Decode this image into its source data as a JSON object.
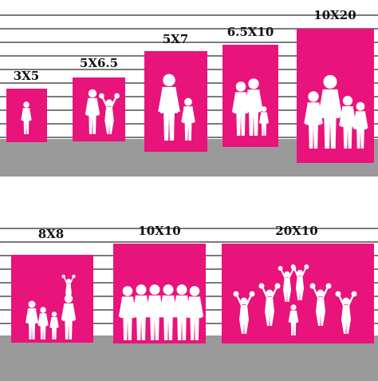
{
  "colors": {
    "backdrop": "#e8137b",
    "floor": "#9a9a9a",
    "line": "#2a2a2a",
    "silhouette": "#ffffff"
  },
  "top_row": {
    "sizes": [
      {
        "label": "3X5",
        "icon": "toddler-silhouette"
      },
      {
        "label": "5X6.5",
        "icon": "adult-and-child-silhouette"
      },
      {
        "label": "5X7",
        "icon": "man-and-boy-silhouette"
      },
      {
        "label": "6.5X10",
        "icon": "family-of-three-silhouette"
      },
      {
        "label": "10X20",
        "icon": "family-of-four-silhouette"
      }
    ]
  },
  "bottom_row": {
    "sizes": [
      {
        "label": "8X8",
        "icon": "small-family-silhouette"
      },
      {
        "label": "10X10",
        "icon": "group-of-six-silhouette"
      },
      {
        "label": "20X10",
        "icon": "cheerleader-squad-silhouette"
      }
    ]
  }
}
